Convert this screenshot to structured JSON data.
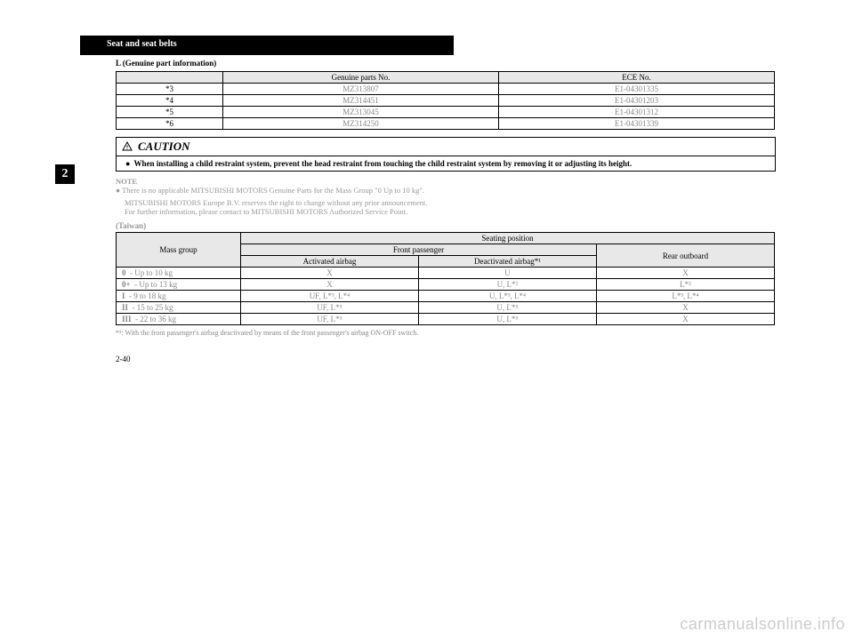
{
  "header": {
    "section": "Seat and seat belts"
  },
  "subline": "L (Genuine part information)",
  "parts_table": {
    "columns": [
      "",
      "Genuine parts No.",
      "ECE No."
    ],
    "rows": [
      [
        "*3",
        "MZ313807",
        "E1-04301335"
      ],
      [
        "*4",
        "MZ314451",
        "E1-04301203"
      ],
      [
        "*5",
        "MZ313045",
        "E1-04301312"
      ],
      [
        "*6",
        "MZ314250",
        "E1-04301339"
      ]
    ]
  },
  "side_tab": "2",
  "caution": {
    "title": "CAUTION",
    "body": "When installing a child restraint system, prevent the head restraint from touching the child restraint system by removing it or adjusting its height."
  },
  "note": {
    "title": "NOTE",
    "line1": "● There is no applicable MITSUBISHI MOTORS Genuine Parts for the Mass Group \"0 Up to 10 kg\".",
    "line2": "MITSUBISHI MOTORS Europe B.V. reserves the right to change without any prior announcement.",
    "line3": "For further information, please contact to MITSUBISHI MOTORS Authorized Service Point."
  },
  "region": "(Taiwan)",
  "seating_table": {
    "header_top": [
      "Mass group",
      "Seating position"
    ],
    "header_mid": [
      "Front passenger",
      "Rear outboard"
    ],
    "header_low": [
      "Activated airbag",
      "Deactivated airbag*¹"
    ],
    "rows": [
      [
        "0",
        "- Up to 10 kg",
        "X",
        "U",
        "X"
      ],
      [
        "0+",
        "- Up to 13 kg",
        "X",
        "U, L*²",
        "L*²"
      ],
      [
        "I",
        "- 9 to 18 kg",
        "UF, L*³, L*⁴",
        "U, L*³, L*⁴",
        "L*³, L*⁴"
      ],
      [
        "II",
        "- 15 to 25 kg",
        "UF, L*⁵",
        "U, L*⁵",
        "X"
      ],
      [
        "III",
        "- 22 to 36 kg",
        "UF, L*⁵",
        "U, L*⁵",
        "X"
      ]
    ]
  },
  "footnote": "*¹: With the front passenger's airbag deactivated by means of the front passenger's airbag ON-OFF switch.",
  "page_num": "2-40"
}
